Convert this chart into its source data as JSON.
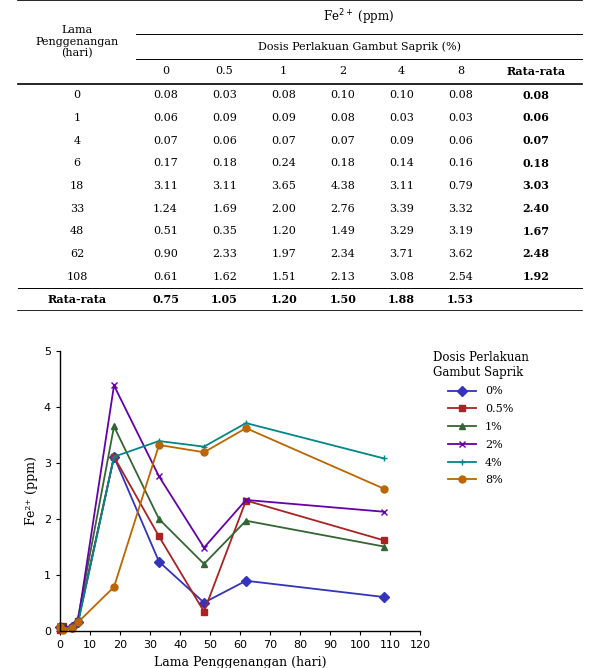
{
  "row_days": [
    0,
    1,
    4,
    6,
    18,
    33,
    48,
    62,
    108
  ],
  "table_data": [
    [
      0.08,
      0.03,
      0.08,
      0.1,
      0.1,
      0.08,
      0.08
    ],
    [
      0.06,
      0.09,
      0.09,
      0.08,
      0.03,
      0.03,
      0.06
    ],
    [
      0.07,
      0.06,
      0.07,
      0.07,
      0.09,
      0.06,
      0.07
    ],
    [
      0.17,
      0.18,
      0.24,
      0.18,
      0.14,
      0.16,
      0.18
    ],
    [
      3.11,
      3.11,
      3.65,
      4.38,
      3.11,
      0.79,
      3.03
    ],
    [
      1.24,
      1.69,
      2.0,
      2.76,
      3.39,
      3.32,
      2.4
    ],
    [
      0.51,
      0.35,
      1.2,
      1.49,
      3.29,
      3.19,
      1.67
    ],
    [
      0.9,
      2.33,
      1.97,
      2.34,
      3.71,
      3.62,
      2.48
    ],
    [
      0.61,
      1.62,
      1.51,
      2.13,
      3.08,
      2.54,
      1.92
    ]
  ],
  "rata_rata_row": [
    0.75,
    1.05,
    1.2,
    1.5,
    1.88,
    1.53
  ],
  "x_days": [
    0,
    1,
    4,
    6,
    18,
    33,
    48,
    62,
    108
  ],
  "series_0": [
    0.08,
    0.06,
    0.07,
    0.17,
    3.11,
    1.24,
    0.51,
    0.9,
    0.61
  ],
  "series_05": [
    0.03,
    0.09,
    0.06,
    0.18,
    3.11,
    1.69,
    0.35,
    2.33,
    1.62
  ],
  "series_1": [
    0.08,
    0.09,
    0.07,
    0.24,
    3.65,
    2.0,
    1.2,
    1.97,
    1.51
  ],
  "series_2": [
    0.1,
    0.08,
    0.07,
    0.18,
    4.38,
    2.76,
    1.49,
    2.34,
    2.13
  ],
  "series_4": [
    0.1,
    0.03,
    0.09,
    0.14,
    3.11,
    3.39,
    3.29,
    3.71,
    3.08
  ],
  "series_8": [
    0.08,
    0.03,
    0.06,
    0.16,
    0.79,
    3.32,
    3.19,
    3.62,
    2.54
  ],
  "colors": [
    "#3333bb",
    "#aa2222",
    "#336633",
    "#6600aa",
    "#008888",
    "#bb6600"
  ],
  "markers": [
    "D",
    "s",
    "^",
    "x",
    "+",
    "o"
  ],
  "legend_labels": [
    "0%",
    "0.5%",
    "1%",
    "2%",
    "4%",
    "8%"
  ],
  "legend_title": "Dosis Perlakuan\nGambut Saprik",
  "xlabel": "Lama Penggenangan (hari)",
  "ylabel": "Fe²⁺ (ppm)",
  "ylim": [
    0,
    5
  ],
  "xlim": [
    0,
    120
  ],
  "xticks": [
    0,
    10,
    20,
    30,
    40,
    50,
    60,
    70,
    80,
    90,
    100,
    110,
    120
  ],
  "yticks": [
    0,
    1,
    2,
    3,
    4,
    5
  ],
  "bg_color": "#ffffff",
  "font_size_table": 8.0,
  "font_size_axis": 9,
  "font_size_legend": 8.5
}
